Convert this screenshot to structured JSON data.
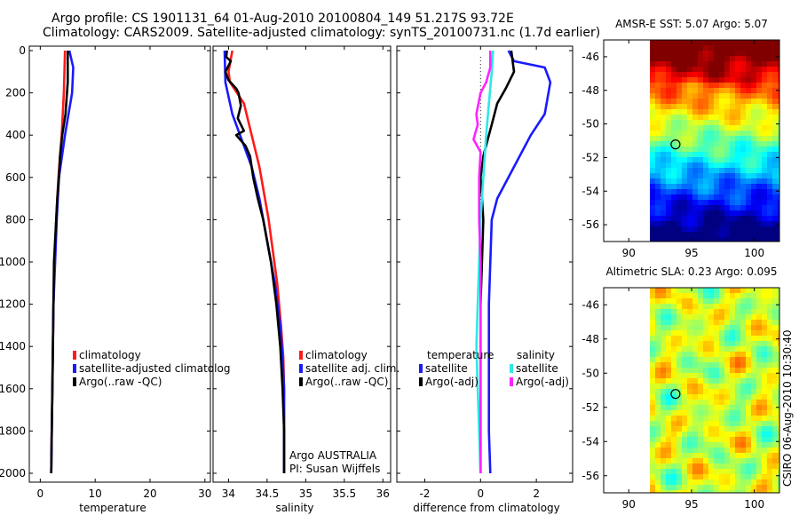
{
  "title": {
    "line1": "Argo profile: CS 1901131_64 01-Aug-2010 20100804_149 51.217S 93.72E",
    "line2": "Climatology: CARS2009. Satellite-adjusted climatology: synTS_20100731.nc (1.7d earlier)"
  },
  "colors": {
    "red": "#ff1a1a",
    "blue": "#1a1aff",
    "black": "#000000",
    "cyan": "#2ee8e8",
    "magenta": "#ff22ff"
  },
  "chart_data": [
    {
      "type": "line",
      "xlabel": "temperature",
      "xlim": [
        -2,
        31
      ],
      "ylim": [
        0,
        2050
      ],
      "xticks": [
        "0",
        "10",
        "20",
        "30"
      ],
      "yticks": [
        "0",
        "200",
        "400",
        "600",
        "800",
        "1000",
        "1200",
        "1400",
        "1600",
        "1800",
        "2000"
      ],
      "legend": [
        "climatology",
        "satellite-adjusted climatolog",
        "Argo(..raw -QC)"
      ],
      "series": [
        {
          "name": "climatology",
          "color": "red",
          "points": [
            [
              4.5,
              0
            ],
            [
              4.4,
              100
            ],
            [
              4.3,
              200
            ],
            [
              3.9,
              400
            ],
            [
              3.3,
              600
            ],
            [
              2.9,
              800
            ],
            [
              2.6,
              1000
            ],
            [
              2.4,
              1200
            ],
            [
              2.3,
              1400
            ],
            [
              2.2,
              1600
            ],
            [
              2.1,
              1800
            ],
            [
              2.0,
              2000
            ]
          ]
        },
        {
          "name": "satellite-adjusted climatology",
          "color": "blue",
          "points": [
            [
              5.3,
              0
            ],
            [
              6.0,
              80
            ],
            [
              5.8,
              200
            ],
            [
              4.5,
              400
            ],
            [
              3.4,
              600
            ],
            [
              3.0,
              800
            ],
            [
              2.7,
              1000
            ],
            [
              2.4,
              1200
            ],
            [
              2.3,
              1400
            ],
            [
              2.2,
              1600
            ],
            [
              2.1,
              1800
            ],
            [
              2.0,
              2000
            ]
          ]
        },
        {
          "name": "Argo(..raw -QC)",
          "color": "black",
          "points": [
            [
              5.0,
              0
            ],
            [
              5.0,
              150
            ],
            [
              4.6,
              300
            ],
            [
              4.0,
              400
            ],
            [
              3.6,
              500
            ],
            [
              3.4,
              600
            ],
            [
              3.1,
              700
            ],
            [
              2.9,
              800
            ],
            [
              2.5,
              1000
            ],
            [
              2.4,
              1200
            ],
            [
              2.3,
              1400
            ],
            [
              2.2,
              1600
            ],
            [
              2.1,
              1800
            ],
            [
              2.0,
              2000
            ]
          ]
        }
      ]
    },
    {
      "type": "line",
      "xlabel": "salinity",
      "xlim": [
        33.8,
        36.1
      ],
      "ylim": [
        0,
        2050
      ],
      "xticks": [
        "34",
        "34.5",
        "35",
        "35.5",
        "36"
      ],
      "legend": [
        "climatology",
        "satellite adj. clim.",
        "Argo(..raw -QC)"
      ],
      "annotation": [
        "Argo AUSTRALIA",
        "PI: Susan Wijffels"
      ],
      "series": [
        {
          "name": "climatology",
          "color": "red",
          "points": [
            [
              34.05,
              0
            ],
            [
              34.0,
              100
            ],
            [
              34.02,
              150
            ],
            [
              34.2,
              250
            ],
            [
              34.3,
              400
            ],
            [
              34.4,
              550
            ],
            [
              34.52,
              800
            ],
            [
              34.63,
              1100
            ],
            [
              34.68,
              1300
            ],
            [
              34.71,
              1450
            ],
            [
              34.72,
              1600
            ],
            [
              34.72,
              2000
            ]
          ]
        },
        {
          "name": "satellite adj. clim.",
          "color": "blue",
          "points": [
            [
              33.95,
              0
            ],
            [
              33.96,
              150
            ],
            [
              34.05,
              300
            ],
            [
              34.15,
              400
            ],
            [
              34.3,
              550
            ],
            [
              34.4,
              700
            ],
            [
              34.5,
              900
            ],
            [
              34.6,
              1100
            ],
            [
              34.67,
              1300
            ],
            [
              34.7,
              1450
            ],
            [
              34.72,
              1600
            ],
            [
              34.72,
              2000
            ]
          ]
        },
        {
          "name": "Argo(..raw -QC)",
          "color": "black",
          "points": [
            [
              33.98,
              0
            ],
            [
              33.97,
              30
            ],
            [
              34.03,
              50
            ],
            [
              33.96,
              100
            ],
            [
              34.0,
              140
            ],
            [
              34.1,
              180
            ],
            [
              34.13,
              200
            ],
            [
              34.16,
              260
            ],
            [
              34.12,
              320
            ],
            [
              34.2,
              380
            ],
            [
              34.1,
              400
            ],
            [
              34.22,
              450
            ],
            [
              34.28,
              500
            ],
            [
              34.32,
              600
            ],
            [
              34.38,
              700
            ],
            [
              34.45,
              800
            ],
            [
              34.55,
              1000
            ],
            [
              34.62,
              1200
            ],
            [
              34.67,
              1400
            ],
            [
              34.7,
              1600
            ],
            [
              34.72,
              1800
            ],
            [
              34.72,
              2000
            ]
          ]
        }
      ]
    },
    {
      "type": "line",
      "xlabel": "difference from climatology",
      "xlim": [
        -3,
        3.3
      ],
      "ylim": [
        0,
        2050
      ],
      "xticks": [
        "-2",
        "0",
        "2"
      ],
      "legend_temperature": {
        "title": "temperature",
        "items": [
          "satellite",
          "Argo(-adj)"
        ]
      },
      "legend_salinity": {
        "title": "salinity",
        "items": [
          "satellite",
          "Argo(-adj)"
        ]
      },
      "series": [
        {
          "name": "temperature satellite",
          "color": "blue",
          "points": [
            [
              1.0,
              0
            ],
            [
              1.2,
              50
            ],
            [
              2.3,
              80
            ],
            [
              2.5,
              150
            ],
            [
              2.3,
              300
            ],
            [
              1.8,
              400
            ],
            [
              1.2,
              550
            ],
            [
              0.6,
              700
            ],
            [
              0.4,
              800
            ],
            [
              0.35,
              1000
            ],
            [
              0.3,
              1200
            ],
            [
              0.3,
              1500
            ],
            [
              0.3,
              1800
            ],
            [
              0.35,
              2000
            ]
          ]
        },
        {
          "name": "temperature Argo(-adj)",
          "color": "black",
          "points": [
            [
              1.1,
              0
            ],
            [
              1.2,
              100
            ],
            [
              0.9,
              180
            ],
            [
              0.6,
              250
            ],
            [
              0.4,
              350
            ],
            [
              0.3,
              400
            ],
            [
              0.1,
              500
            ],
            [
              0.0,
              600
            ],
            [
              0.05,
              700
            ],
            [
              0.1,
              800
            ],
            [
              0.05,
              1000
            ],
            [
              0.0,
              1200
            ],
            [
              0.0,
              1500
            ],
            [
              0.0,
              1800
            ],
            [
              0.0,
              2000
            ]
          ]
        },
        {
          "name": "salinity satellite",
          "color": "cyan",
          "points": [
            [
              0.45,
              0
            ],
            [
              0.4,
              100
            ],
            [
              0.3,
              250
            ],
            [
              0.2,
              400
            ],
            [
              0.1,
              600
            ],
            [
              0.0,
              800
            ],
            [
              -0.05,
              1000
            ],
            [
              -0.1,
              1200
            ],
            [
              -0.15,
              1400
            ],
            [
              -0.1,
              1600
            ],
            [
              -0.05,
              1800
            ],
            [
              0.0,
              2000
            ]
          ]
        },
        {
          "name": "salinity Argo(-adj)",
          "color": "magenta",
          "points": [
            [
              0.35,
              0
            ],
            [
              0.35,
              80
            ],
            [
              0.2,
              150
            ],
            [
              0.0,
              200
            ],
            [
              -0.15,
              300
            ],
            [
              -0.1,
              350
            ],
            [
              -0.25,
              420
            ],
            [
              0.0,
              480
            ],
            [
              -0.05,
              600
            ],
            [
              -0.05,
              800
            ],
            [
              0.0,
              1000
            ],
            [
              0.0,
              1200
            ],
            [
              0.0,
              1500
            ],
            [
              0.0,
              1800
            ],
            [
              0.0,
              2000
            ]
          ]
        }
      ]
    },
    {
      "type": "heatmap",
      "title": "AMSR-E SST: 5.07 Argo: 5.07",
      "xlim": [
        88,
        102
      ],
      "ylim": [
        -57,
        -45
      ],
      "xticks": [
        "90",
        "95",
        "100"
      ],
      "yticks": [
        "-46",
        "-48",
        "-50",
        "-52",
        "-54",
        "-56"
      ],
      "marker": {
        "lon": 93.72,
        "lat": -51.217
      },
      "colormap": "jet"
    },
    {
      "type": "heatmap",
      "title": "Altimetric SLA: 0.23 Argo: 0.095",
      "xlim": [
        88,
        102
      ],
      "ylim": [
        -57,
        -45
      ],
      "xticks": [
        "90",
        "95",
        "100"
      ],
      "yticks": [
        "-46",
        "-48",
        "-50",
        "-52",
        "-54",
        "-56"
      ],
      "marker": {
        "lon": 93.72,
        "lat": -51.217
      },
      "colormap": "jet"
    }
  ],
  "footer_stamp": "CSIRO 06-Aug-2010 10:30:40"
}
